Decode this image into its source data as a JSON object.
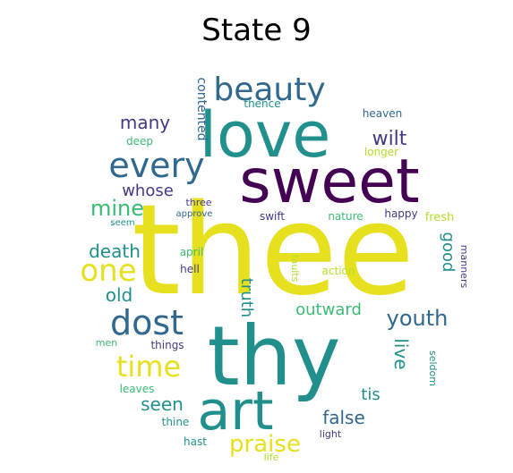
{
  "title": "State 9",
  "palette": {
    "yellow": "#e6e01e",
    "green": "#3cbb75",
    "teal": "#21908c",
    "blue": "#31688e",
    "navy": "#443983",
    "purple": "#440154",
    "lime": "#90d743",
    "light": "#b5de2b"
  },
  "words": [
    {
      "text": "thee"
    },
    {
      "text": "thy"
    },
    {
      "text": "sweet"
    },
    {
      "text": "love"
    },
    {
      "text": "art"
    },
    {
      "text": "beauty"
    },
    {
      "text": "every"
    },
    {
      "text": "dost"
    },
    {
      "text": "time"
    },
    {
      "text": "one"
    },
    {
      "text": "youth"
    },
    {
      "text": "praise"
    },
    {
      "text": "mine"
    },
    {
      "text": "wilt"
    },
    {
      "text": "death"
    },
    {
      "text": "many"
    },
    {
      "text": "whose"
    },
    {
      "text": "old"
    },
    {
      "text": "seen"
    },
    {
      "text": "false"
    },
    {
      "text": "tis"
    },
    {
      "text": "live"
    },
    {
      "text": "outward"
    },
    {
      "text": "truth"
    },
    {
      "text": "good"
    },
    {
      "text": "contented"
    },
    {
      "text": "heaven"
    },
    {
      "text": "thence"
    },
    {
      "text": "longer"
    },
    {
      "text": "deep"
    },
    {
      "text": "fresh"
    },
    {
      "text": "happy"
    },
    {
      "text": "nature"
    },
    {
      "text": "swift"
    },
    {
      "text": "three"
    },
    {
      "text": "approve"
    },
    {
      "text": "seem"
    },
    {
      "text": "april"
    },
    {
      "text": "hell"
    },
    {
      "text": "faults"
    },
    {
      "text": "action"
    },
    {
      "text": "manners"
    },
    {
      "text": "seldom"
    },
    {
      "text": "things"
    },
    {
      "text": "men"
    },
    {
      "text": "leaves"
    },
    {
      "text": "thine"
    },
    {
      "text": "hast"
    },
    {
      "text": "light"
    },
    {
      "text": "life"
    }
  ]
}
